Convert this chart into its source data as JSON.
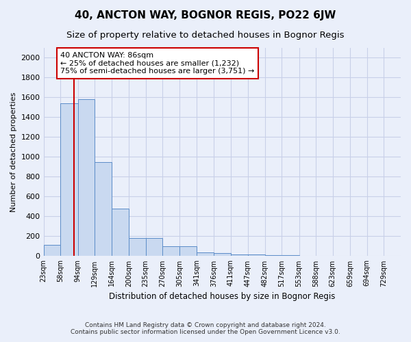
{
  "title": "40, ANCTON WAY, BOGNOR REGIS, PO22 6JW",
  "subtitle": "Size of property relative to detached houses in Bognor Regis",
  "xlabel": "Distribution of detached houses by size in Bognor Regis",
  "ylabel": "Number of detached properties",
  "bin_labels": [
    "23sqm",
    "58sqm",
    "94sqm",
    "129sqm",
    "164sqm",
    "200sqm",
    "235sqm",
    "270sqm",
    "305sqm",
    "341sqm",
    "376sqm",
    "411sqm",
    "447sqm",
    "482sqm",
    "517sqm",
    "553sqm",
    "588sqm",
    "623sqm",
    "659sqm",
    "694sqm",
    "729sqm"
  ],
  "bin_edges": [
    23,
    58,
    94,
    129,
    164,
    200,
    235,
    270,
    305,
    341,
    376,
    411,
    447,
    482,
    517,
    553,
    588,
    623,
    659,
    694,
    729
  ],
  "bar_heights": [
    110,
    1540,
    1580,
    950,
    480,
    185,
    185,
    100,
    100,
    40,
    30,
    20,
    15,
    10,
    8,
    5,
    3,
    2,
    2,
    1,
    1
  ],
  "bar_color": "#c9d9f0",
  "bar_edge_color": "#5b8cc8",
  "property_size": 86,
  "red_line_color": "#cc0000",
  "annotation_line1": "40 ANCTON WAY: 86sqm",
  "annotation_line2": "← 25% of detached houses are smaller (1,232)",
  "annotation_line3": "75% of semi-detached houses are larger (3,751) →",
  "annotation_box_color": "white",
  "annotation_box_edge": "#cc0000",
  "ylim": [
    0,
    2100
  ],
  "yticks": [
    0,
    200,
    400,
    600,
    800,
    1000,
    1200,
    1400,
    1600,
    1800,
    2000
  ],
  "bg_color": "#eaeffa",
  "grid_color": "#c8d0e8",
  "footer": "Contains HM Land Registry data © Crown copyright and database right 2024.\nContains public sector information licensed under the Open Government Licence v3.0.",
  "title_fontsize": 11,
  "subtitle_fontsize": 9.5
}
